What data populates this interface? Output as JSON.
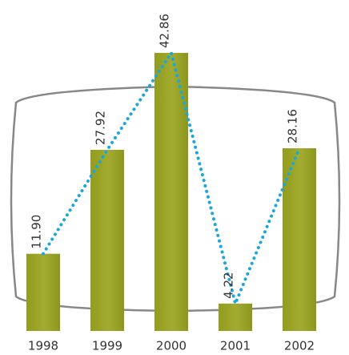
{
  "chart_data": {
    "type": "bar",
    "categories": [
      "1998",
      "1999",
      "2000",
      "2001",
      "2002"
    ],
    "values": [
      11.9,
      27.92,
      42.86,
      4.22,
      28.16
    ],
    "value_labels": [
      "11.90",
      "27.92",
      "42.86",
      "4.22",
      "28.16"
    ],
    "color": "#9ba51f",
    "line_color": "#1ba8d8"
  }
}
